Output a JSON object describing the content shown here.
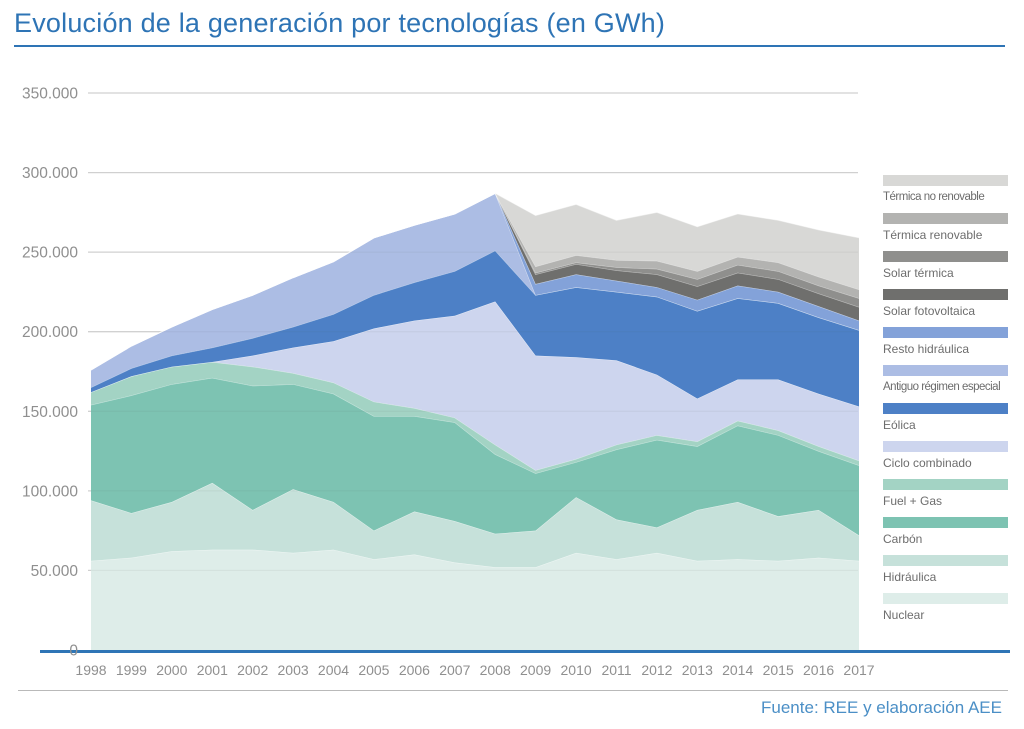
{
  "title": "Evolución de la generación por tecnologías (en GWh)",
  "source": "Fuente: REE y elaboración AEE",
  "colors": {
    "title_blue": "#2E74B5",
    "axis_blue": "#2E75B6",
    "source_blue": "#4B8FC6",
    "grid_gray": "#D9D9D9",
    "tick_gray": "#8F8F8F",
    "legend_label_gray": "#6D6D6D",
    "footer_rule_gray": "#B9B9B9"
  },
  "chart_data": {
    "type": "area",
    "stacked": true,
    "title": "Evolución de la generación por tecnologías (en GWh)",
    "unit": "GWh",
    "grid": true,
    "legend_position": "right",
    "xlabel": "",
    "ylabel": "",
    "ylim": [
      0,
      350000
    ],
    "x": [
      "1998",
      "1999",
      "2000",
      "2001",
      "2002",
      "2003",
      "2004",
      "2005",
      "2006",
      "2007",
      "2008",
      "2009",
      "2010",
      "2011",
      "2012",
      "2013",
      "2014",
      "2015",
      "2016",
      "2017"
    ],
    "y_ticks": [
      {
        "value": 0,
        "label": "0"
      },
      {
        "value": 50000,
        "label": "50.000"
      },
      {
        "value": 100000,
        "label": "100.000"
      },
      {
        "value": 150000,
        "label": "150.000"
      },
      {
        "value": 200000,
        "label": "200.000"
      },
      {
        "value": 250000,
        "label": "250.000"
      },
      {
        "value": 300000,
        "label": "300.000"
      },
      {
        "value": 350000,
        "label": "350.000"
      }
    ],
    "series": [
      {
        "id": "nuclear",
        "name": "Nuclear",
        "color": "#deede9",
        "values": [
          56000,
          58000,
          62000,
          63000,
          63000,
          61000,
          63000,
          57000,
          60000,
          55000,
          52000,
          52000,
          61000,
          57000,
          61000,
          56000,
          57000,
          56000,
          58000,
          56000
        ]
      },
      {
        "id": "hidraulica",
        "name": "Hidráulica",
        "color": "#c6e1da",
        "values": [
          38000,
          28000,
          31000,
          42000,
          25000,
          40000,
          30000,
          18000,
          27000,
          26000,
          21000,
          23000,
          35000,
          25000,
          16000,
          32000,
          36000,
          28000,
          30000,
          16000
        ]
      },
      {
        "id": "carbon",
        "name": "Carbón",
        "color": "#7dc3b2",
        "values": [
          60000,
          74000,
          74000,
          66000,
          78000,
          66000,
          68000,
          72000,
          60000,
          62000,
          50000,
          36000,
          22000,
          44000,
          55000,
          40000,
          48000,
          51000,
          37000,
          44000
        ]
      },
      {
        "id": "fuel_gas",
        "name": "Fuel + Gas",
        "color": "#a3d3c4",
        "values": [
          8000,
          12000,
          11000,
          10000,
          12000,
          7000,
          7000,
          9000,
          5000,
          3000,
          6000,
          2000,
          2000,
          3000,
          3000,
          3000,
          3000,
          3000,
          3000,
          3000
        ]
      },
      {
        "id": "ciclo_combinado",
        "name": "Ciclo combinado",
        "color": "#cdd5ee",
        "values": [
          0,
          0,
          0,
          0,
          7000,
          16000,
          26000,
          46000,
          55000,
          64000,
          90000,
          72000,
          64000,
          53000,
          38000,
          27000,
          26000,
          32000,
          33000,
          34000
        ]
      },
      {
        "id": "eolica",
        "name": "Eólica",
        "color": "#4d80c6",
        "values": [
          3000,
          5000,
          7000,
          9000,
          11000,
          13000,
          17000,
          21000,
          24000,
          28000,
          32000,
          38000,
          44000,
          43000,
          49000,
          55000,
          51000,
          48000,
          48000,
          48000
        ]
      },
      {
        "id": "antiguo_regimen_especial",
        "name": "Antiguo régimen especial",
        "color": "#acbde4",
        "values": [
          11000,
          14000,
          18000,
          24000,
          27000,
          31000,
          33000,
          36000,
          36000,
          36000,
          36000,
          0,
          0,
          0,
          0,
          0,
          0,
          0,
          0,
          0
        ]
      },
      {
        "id": "resto_hidraulica",
        "name": "Resto hidráulica",
        "color": "#83a2d9",
        "values": [
          0,
          0,
          0,
          0,
          0,
          0,
          0,
          0,
          0,
          0,
          0,
          7000,
          8000,
          7000,
          6000,
          7000,
          8000,
          7000,
          7000,
          6000
        ]
      },
      {
        "id": "solar_fotovoltaica",
        "name": "Solar fotovoltaica",
        "color": "#6f6f6d",
        "values": [
          0,
          0,
          0,
          0,
          0,
          0,
          0,
          0,
          0,
          0,
          0,
          6000,
          6500,
          6500,
          8000,
          8500,
          8000,
          8000,
          8000,
          8500
        ]
      },
      {
        "id": "solar_termica",
        "name": "Solar térmica",
        "color": "#8f8f8d",
        "values": [
          0,
          0,
          0,
          0,
          0,
          0,
          0,
          0,
          0,
          0,
          0,
          1000,
          1000,
          2000,
          3500,
          4500,
          5000,
          5000,
          5000,
          5500
        ]
      },
      {
        "id": "termica_renovable",
        "name": "Térmica renovable",
        "color": "#b3b3b1",
        "values": [
          0,
          0,
          0,
          0,
          0,
          0,
          0,
          0,
          0,
          0,
          0,
          4000,
          4500,
          4500,
          5000,
          5000,
          5000,
          5500,
          5500,
          5500
        ]
      },
      {
        "id": "termica_no_renovable",
        "name": "Térmica no renovable",
        "color": "#d8d8d6",
        "values": [
          0,
          0,
          0,
          0,
          0,
          0,
          0,
          0,
          0,
          0,
          0,
          32000,
          32000,
          25000,
          30500,
          28000,
          27000,
          26500,
          29500,
          32500
        ]
      }
    ]
  }
}
